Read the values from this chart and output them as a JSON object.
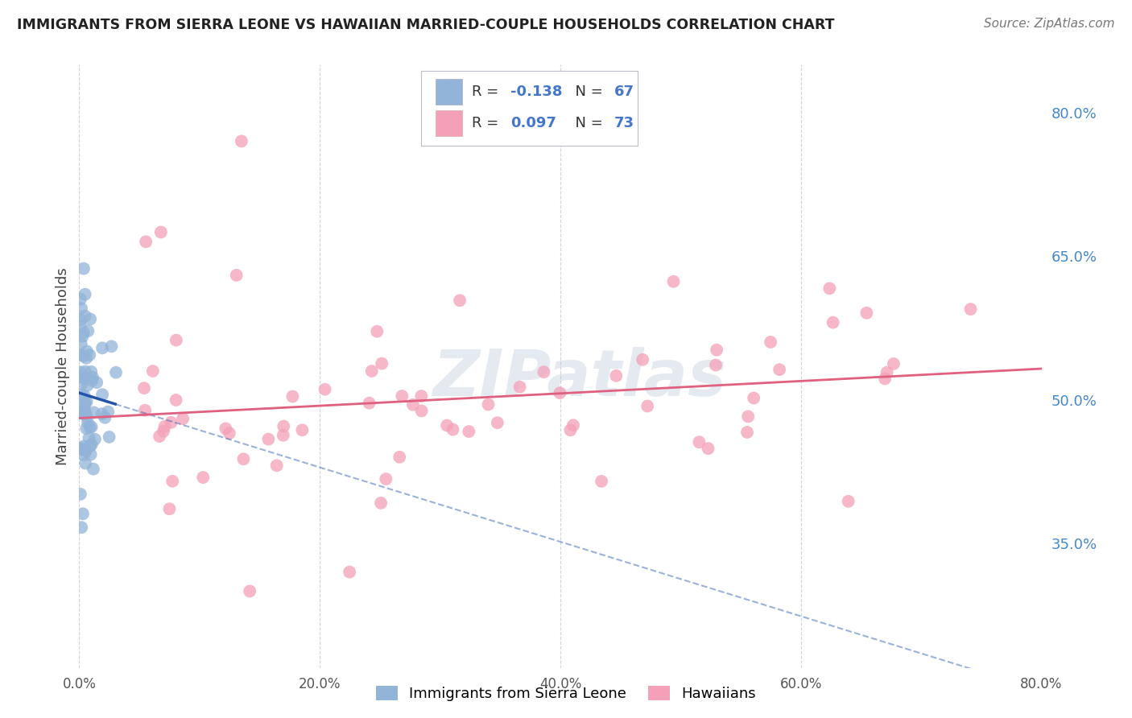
{
  "title": "IMMIGRANTS FROM SIERRA LEONE VS HAWAIIAN MARRIED-COUPLE HOUSEHOLDS CORRELATION CHART",
  "source": "Source: ZipAtlas.com",
  "ylabel": "Married-couple Households",
  "legend_r1": "-0.138",
  "legend_n1": "67",
  "legend_r2": "0.097",
  "legend_n2": "73",
  "blue_color": "#92B4D8",
  "pink_color": "#F4A0B8",
  "blue_line_color": "#2255AA",
  "pink_line_color": "#E06080",
  "watermark_color": "#AABBD0",
  "background_color": "#FFFFFF",
  "grid_color": "#CCCCDD",
  "axis_label_color": "#4488CC",
  "xmin": 0.0,
  "xmax": 0.8,
  "ymin": 0.22,
  "ymax": 0.85,
  "yticks": [
    0.35,
    0.5,
    0.65,
    0.8
  ],
  "xticks": [
    0.0,
    0.2,
    0.4,
    0.6,
    0.8
  ],
  "xlabel_bottom_left": "0.0%",
  "xlabel_bottom_right": "80.0%"
}
